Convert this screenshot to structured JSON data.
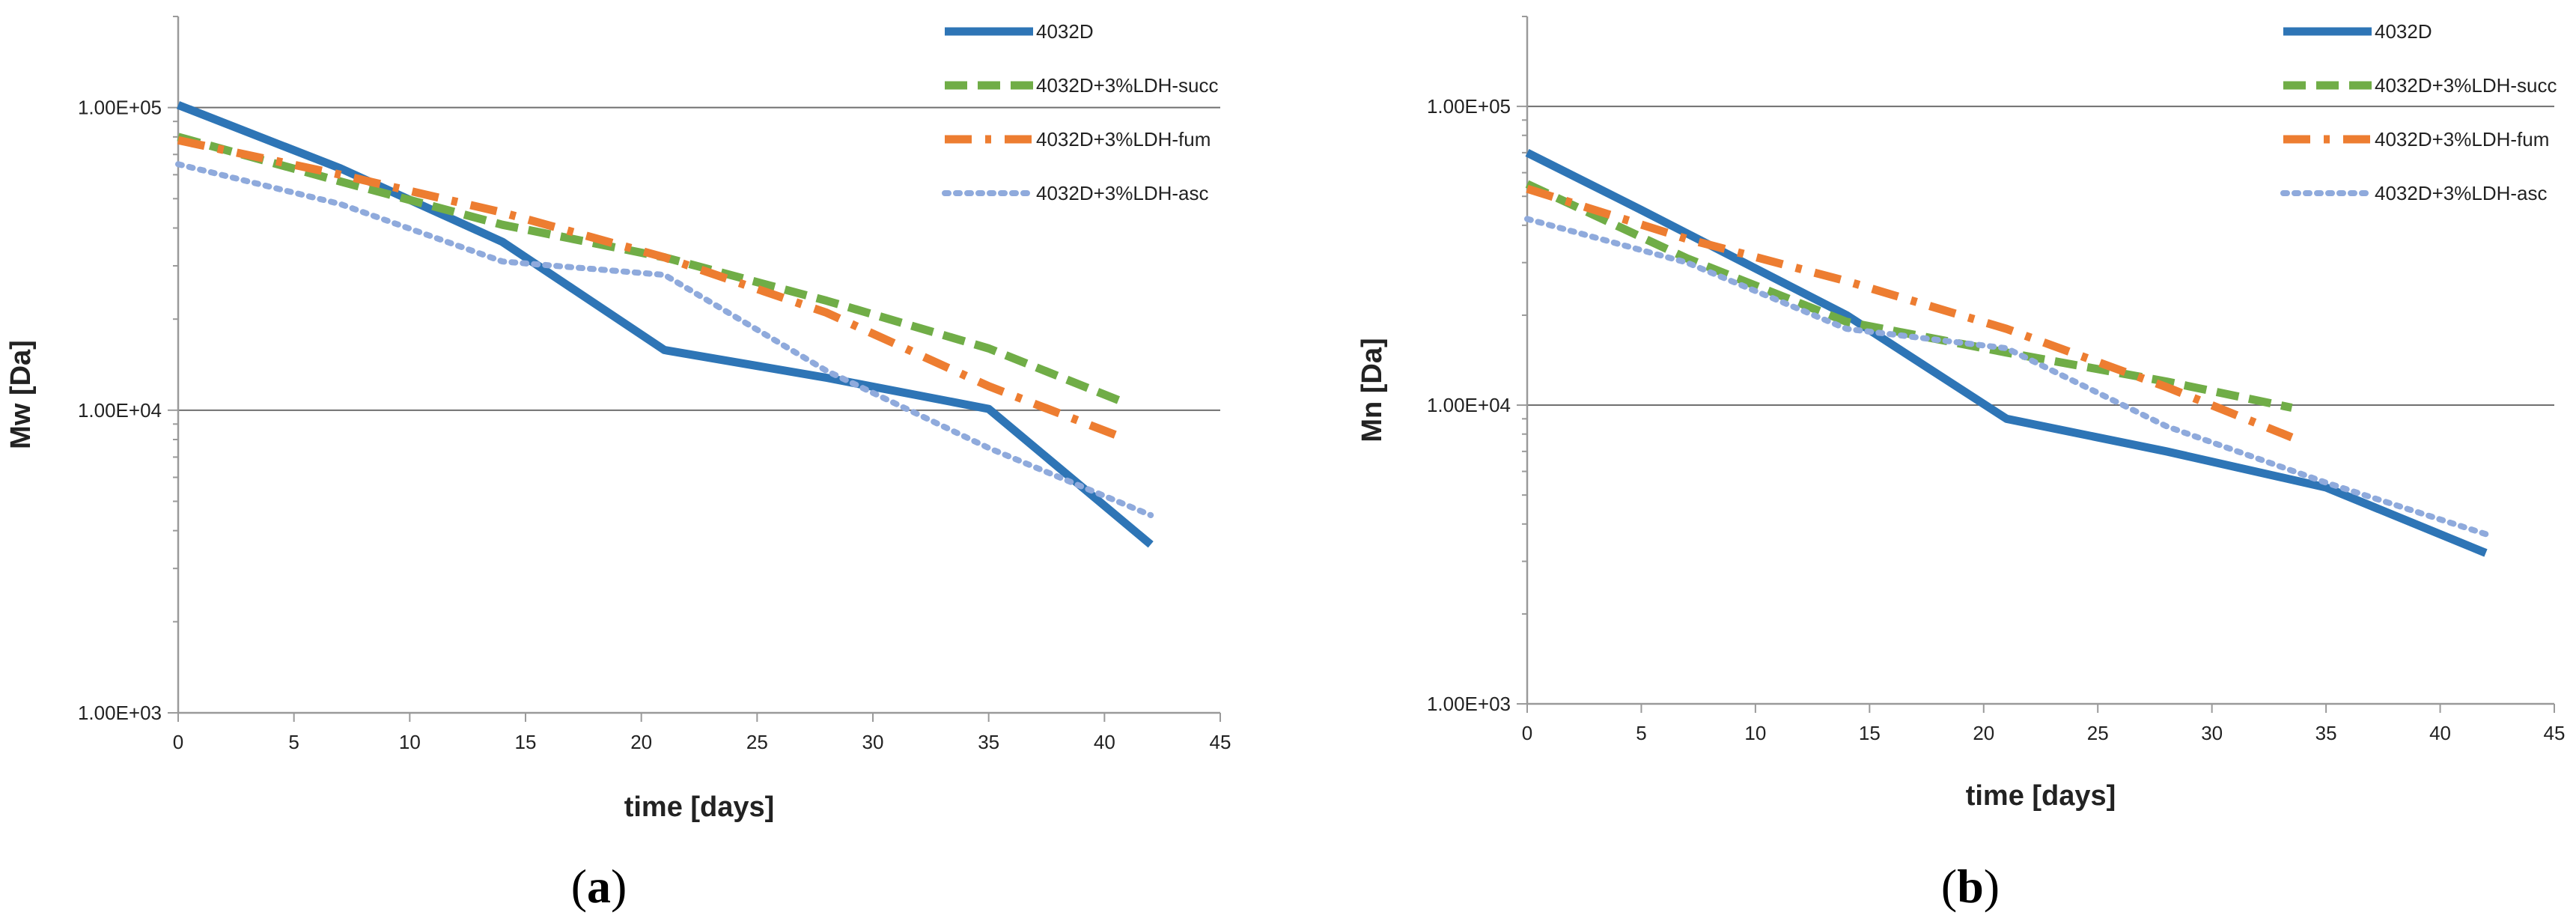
{
  "colors": {
    "4032D": "#2E75B6",
    "succ": "#70AD47",
    "fum": "#ED7D31",
    "asc": "#8FAADC",
    "grid": "#6f6f6f",
    "axis": "#9a9a9a"
  },
  "chart_data": [
    {
      "type": "line",
      "panel_label": "a",
      "title": "",
      "xlabel": "time [days]",
      "ylabel": "Mw [Da]",
      "xlim": [
        0,
        45
      ],
      "ylim": [
        1000,
        200000
      ],
      "yscale": "log",
      "x_ticks": [
        "0",
        "5",
        "10",
        "15",
        "20",
        "25",
        "30",
        "35",
        "40",
        "45"
      ],
      "y_ticks": [
        "1.00E+03",
        "1.00E+04",
        "1.00E+05"
      ],
      "legend_position": "top-right",
      "series": [
        {
          "name": "4032D",
          "color_key": "4032D",
          "style": "solid",
          "x": [
            0,
            7,
            14,
            21,
            28,
            35,
            42
          ],
          "y": [
            102000,
            63000,
            36000,
            15800,
            12800,
            10100,
            3600
          ]
        },
        {
          "name": "4032D+3%LDH-succ",
          "color_key": "succ",
          "style": "dash",
          "x": [
            0,
            7,
            14,
            21,
            28,
            35,
            41
          ],
          "y": [
            80000,
            57000,
            41000,
            32000,
            23000,
            16000,
            10500
          ]
        },
        {
          "name": "4032D+3%LDH-fum",
          "color_key": "fum",
          "style": "dashdot",
          "x": [
            0,
            7,
            14,
            21,
            28,
            35,
            41
          ],
          "y": [
            78000,
            60000,
            45000,
            32000,
            21000,
            12000,
            8000
          ]
        },
        {
          "name": "4032D+3%LDH-asc",
          "color_key": "asc",
          "style": "dot",
          "x": [
            0,
            7,
            14,
            21,
            28,
            35,
            42
          ],
          "y": [
            65000,
            48000,
            31000,
            28000,
            13500,
            7500,
            4500
          ]
        }
      ]
    },
    {
      "type": "line",
      "panel_label": "b",
      "title": "",
      "xlabel": "time [days]",
      "ylabel": "Mn [Da]",
      "xlim": [
        0,
        45
      ],
      "ylim": [
        1000,
        200000
      ],
      "yscale": "log",
      "x_ticks": [
        "0",
        "5",
        "10",
        "15",
        "20",
        "25",
        "30",
        "35",
        "40",
        "45"
      ],
      "y_ticks": [
        "1.00E+03",
        "1.00E+04",
        "1.00E+05"
      ],
      "legend_position": "top-right",
      "series": [
        {
          "name": "4032D",
          "color_key": "4032D",
          "style": "solid",
          "x": [
            0,
            5,
            14,
            21,
            28,
            35,
            42
          ],
          "y": [
            70000,
            45000,
            20000,
            9000,
            7000,
            5300,
            3200
          ]
        },
        {
          "name": "4032D+3%LDH-succ",
          "color_key": "succ",
          "style": "dash",
          "x": [
            0,
            7,
            14,
            21,
            28,
            33.5
          ],
          "y": [
            55000,
            31000,
            19000,
            15000,
            12000,
            9800
          ]
        },
        {
          "name": "4032D+3%LDH-fum",
          "color_key": "fum",
          "style": "dashdot",
          "x": [
            0,
            7,
            14,
            21,
            28,
            33.5
          ],
          "y": [
            53000,
            36000,
            26000,
            18000,
            11500,
            7800
          ]
        },
        {
          "name": "4032D+3%LDH-asc",
          "color_key": "asc",
          "style": "dot",
          "x": [
            0,
            7,
            14,
            21,
            28,
            35,
            42
          ],
          "y": [
            42000,
            30000,
            18000,
            15500,
            8500,
            5500,
            3700
          ]
        }
      ]
    }
  ]
}
